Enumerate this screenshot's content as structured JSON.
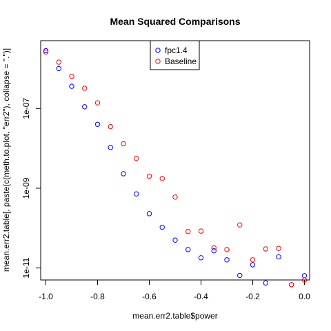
{
  "chart_data": {
    "type": "scatter",
    "title": "Mean Squared Comparisons",
    "xlabel": "mean.err2.table$power",
    "ylabel": "mean.err2.table[, paste(c(meth.to.plot, \"err2\"), collapse = \".\")]",
    "xlim": [
      -1.02,
      0.02
    ],
    "ylim": [
      5e-12,
      5e-06
    ],
    "ylog": true,
    "grid": false,
    "legend_position": "top-center",
    "x_ticks": [
      -1.0,
      -0.8,
      -0.6,
      -0.4,
      -0.2,
      0.0
    ],
    "x_tick_labels": [
      "-1.0",
      "-0.8",
      "-0.6",
      "-0.4",
      "-0.2",
      "0.0"
    ],
    "y_ticks": [
      1e-11,
      1e-09,
      1e-07
    ],
    "y_tick_labels": [
      "1e-11",
      "1e-09",
      "1e-07"
    ],
    "x": [
      -1.0,
      -0.95,
      -0.9,
      -0.85,
      -0.8,
      -0.75,
      -0.7,
      -0.65,
      -0.6,
      -0.55,
      -0.5,
      -0.45,
      -0.4,
      -0.35,
      -0.3,
      -0.25,
      -0.2,
      -0.15,
      -0.1,
      -0.05,
      0.0
    ],
    "series": [
      {
        "name": "fpc1.4",
        "color": "#0000ff",
        "values": [
          2.8e-06,
          1e-06,
          3.6e-07,
          1.1e-07,
          4e-08,
          1.05e-08,
          2.3e-09,
          7.2e-10,
          2.3e-10,
          1.05e-10,
          5e-11,
          2.9e-11,
          1.8e-11,
          2.7e-11,
          1.6e-11,
          6.5e-12,
          1.2e-11,
          4.2e-12,
          1.9e-11,
          3.8e-12,
          6.4e-12
        ]
      },
      {
        "name": "Baseline",
        "color": "#ff0000",
        "values": [
          2.6e-06,
          1.45e-06,
          6.4e-07,
          3.2e-07,
          1.38e-07,
          3.5e-08,
          1.3e-08,
          5.6e-09,
          2e-09,
          1.75e-09,
          6e-10,
          8.2e-11,
          8.4e-11,
          3.2e-11,
          2.9e-11,
          1.2e-10,
          1.6e-11,
          3e-11,
          3.1e-11,
          3.8e-12,
          5e-12
        ]
      }
    ]
  }
}
